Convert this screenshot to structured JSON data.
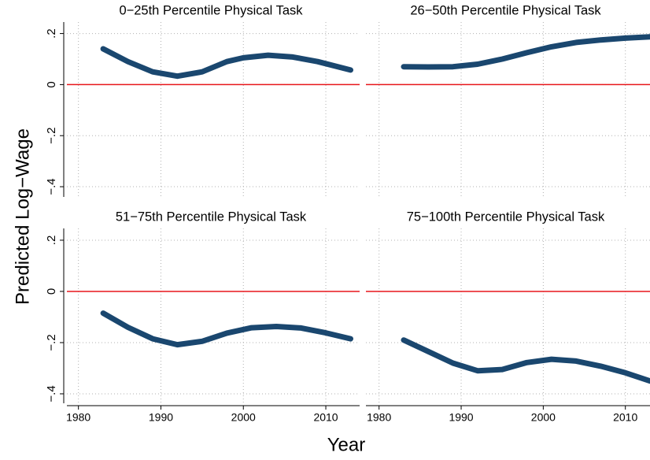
{
  "figure": {
    "ylabel": "Predicted Log−Wage",
    "xlabel": "Year"
  },
  "chart_data": [
    {
      "type": "line",
      "title": "0−25th Percentile Physical Task",
      "x": [
        1983,
        1986,
        1989,
        1992,
        1995,
        1998,
        2000,
        2003,
        2006,
        2009,
        2013
      ],
      "values": [
        0.14,
        0.09,
        0.05,
        0.033,
        0.05,
        0.09,
        0.105,
        0.115,
        0.108,
        0.09,
        0.057
      ],
      "color": "#1a476f",
      "hline": 0,
      "hline_color": "#e8161b",
      "xlim": [
        1978.6,
        2014.1
      ],
      "ylim": [
        -0.44,
        0.245
      ],
      "xticks": [
        1980,
        1990,
        2000,
        2010
      ],
      "yticks": [
        {
          "value": 0.2,
          "label": ".2"
        },
        0,
        {
          "value": -0.2,
          "label": "−.2"
        },
        {
          "value": -0.4,
          "label": "−.4"
        }
      ],
      "grid": true
    },
    {
      "type": "line",
      "title": "26−50th Percentile Physical Task",
      "x": [
        1983,
        1986,
        1989,
        1992,
        1995,
        1998,
        2001,
        2004,
        2007,
        2010,
        2013
      ],
      "values": [
        0.07,
        0.069,
        0.07,
        0.08,
        0.1,
        0.125,
        0.148,
        0.165,
        0.175,
        0.182,
        0.187
      ],
      "color": "#1a476f",
      "hline": 0,
      "hline_color": "#e8161b",
      "xlim": [
        1978.4,
        2013
      ],
      "ylim": [
        -0.44,
        0.245
      ],
      "xticks": [
        1980,
        1990,
        2000,
        2010
      ],
      "yticks": [
        {
          "value": 0.2,
          "label": ".2"
        },
        0,
        {
          "value": -0.2,
          "label": "−.2"
        },
        {
          "value": -0.4,
          "label": "−.4"
        }
      ],
      "grid": true
    },
    {
      "type": "line",
      "title": "51−75th Percentile Physical Task",
      "x": [
        1983,
        1986,
        1989,
        1992,
        1995,
        1998,
        2001,
        2004,
        2007,
        2010,
        2013
      ],
      "values": [
        -0.085,
        -0.14,
        -0.185,
        -0.208,
        -0.195,
        -0.163,
        -0.142,
        -0.137,
        -0.143,
        -0.162,
        -0.185
      ],
      "color": "#1a476f",
      "hline": 0,
      "hline_color": "#e8161b",
      "xlim": [
        1978.6,
        2014.1
      ],
      "ylim": [
        -0.437,
        0.246
      ],
      "xticks": [
        1980,
        1990,
        2000,
        2010
      ],
      "yticks": [
        {
          "value": 0.2,
          "label": ".2"
        },
        0,
        {
          "value": -0.2,
          "label": "−.2"
        },
        {
          "value": -0.4,
          "label": "−.4"
        }
      ],
      "grid": true
    },
    {
      "type": "line",
      "title": "75−100th Percentile Physical Task",
      "x": [
        1983,
        1986,
        1989,
        1992,
        1995,
        1998,
        2001,
        2004,
        2007,
        2010,
        2013
      ],
      "values": [
        -0.19,
        -0.235,
        -0.28,
        -0.31,
        -0.305,
        -0.278,
        -0.265,
        -0.272,
        -0.292,
        -0.318,
        -0.35
      ],
      "color": "#1a476f",
      "hline": 0,
      "hline_color": "#e8161b",
      "xlim": [
        1978.4,
        2013
      ],
      "ylim": [
        -0.437,
        0.246
      ],
      "xticks": [
        1980,
        1990,
        2000,
        2010
      ],
      "yticks": [
        {
          "value": 0.2,
          "label": ".2"
        },
        0,
        {
          "value": -0.2,
          "label": "−.2"
        },
        {
          "value": -0.4,
          "label": "−.4"
        }
      ],
      "grid": true
    }
  ]
}
